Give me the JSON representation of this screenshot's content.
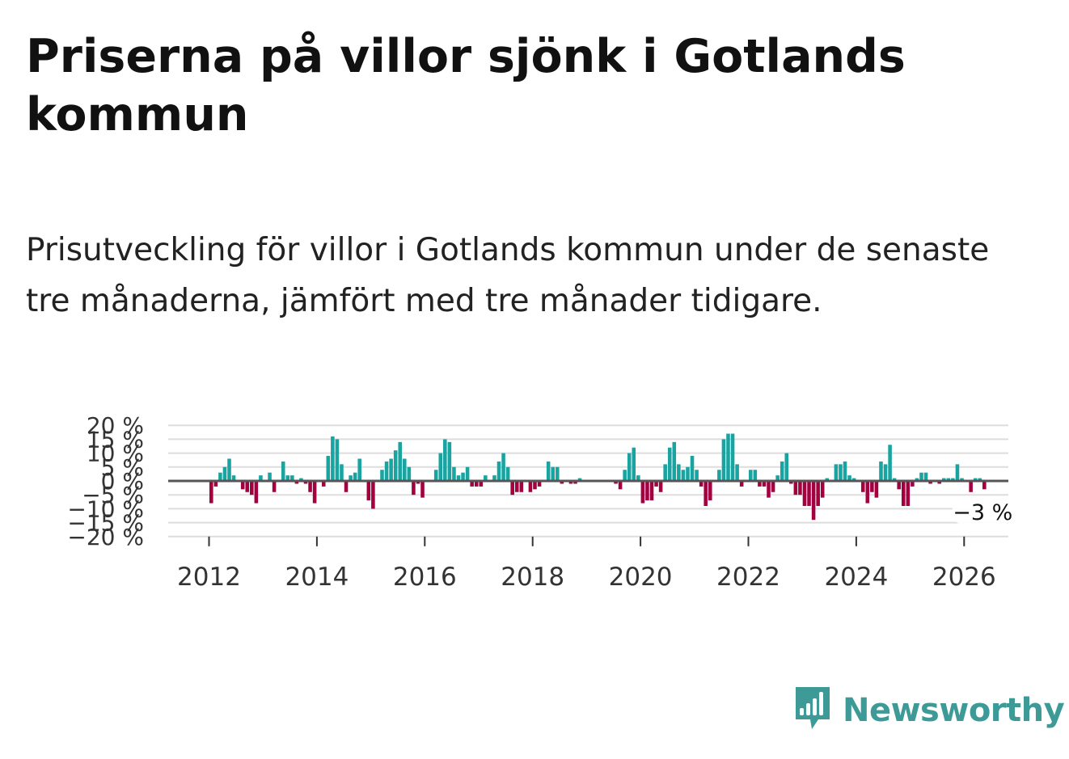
{
  "title": "Priserna på villor sjönk i Gotlands kommun",
  "subtitle": "Prisutveckling för villor i Gotlands kommun under de senaste tre månaderna, jämfört med tre månader tidigare.",
  "brand": {
    "name": "Newsworthy",
    "icon": "newsworthy-logo-icon",
    "color": "#3d9a96"
  },
  "colors": {
    "positive": "#19a3a1",
    "negative": "#a3003f",
    "zero_line": "#555555",
    "grid": "#dddddd"
  },
  "chart_data": {
    "type": "bar",
    "start": "2012-01",
    "x_ticks": [
      "2012",
      "2014",
      "2016",
      "2018",
      "2020",
      "2022",
      "2024",
      "2026"
    ],
    "y_ticks": [
      "20 %",
      "15 %",
      "10 %",
      "5 %",
      "0 %",
      "−5 %",
      "−10 %",
      "−15 %",
      "−20 %"
    ],
    "ylim": [
      -20,
      20
    ],
    "grid": true,
    "last_label": "−3 %",
    "values": [
      -8,
      -2,
      3,
      5,
      8,
      2,
      0,
      -3,
      -4,
      -5,
      -8,
      2,
      0,
      3,
      -4,
      0,
      7,
      2,
      2,
      -1,
      1,
      -1,
      -4,
      -8,
      0,
      -2,
      9,
      16,
      15,
      6,
      -4,
      2,
      3,
      8,
      0,
      -7,
      -10,
      0,
      4,
      7,
      8,
      11,
      14,
      8,
      5,
      -5,
      -1,
      -6,
      0,
      0,
      4,
      10,
      15,
      14,
      5,
      2,
      3,
      5,
      -2,
      -2,
      -2,
      2,
      0,
      2,
      7,
      10,
      5,
      -5,
      -4,
      -4,
      0,
      -4,
      -3,
      -2,
      0,
      7,
      5,
      5,
      -1,
      0,
      -1,
      -1,
      1,
      0,
      0,
      0,
      0,
      0,
      0,
      0,
      -1,
      -3,
      4,
      10,
      12,
      2,
      -8,
      -7,
      -7,
      -2,
      -4,
      6,
      12,
      14,
      6,
      4,
      5,
      9,
      4,
      -2,
      -9,
      -7,
      0,
      4,
      15,
      17,
      17,
      6,
      -2,
      0,
      4,
      4,
      -2,
      -2,
      -6,
      -4,
      2,
      7,
      10,
      -1,
      -5,
      -5,
      -9,
      -9,
      -14,
      -9,
      -6,
      1,
      0,
      6,
      6,
      7,
      2,
      1,
      0,
      -4,
      -8,
      -4,
      -6,
      7,
      6,
      13,
      1,
      -3,
      -9,
      -9,
      -2,
      1,
      3,
      3,
      -1,
      0,
      -1,
      1,
      1,
      1,
      6,
      1,
      0,
      -4,
      1,
      1,
      -3
    ]
  }
}
